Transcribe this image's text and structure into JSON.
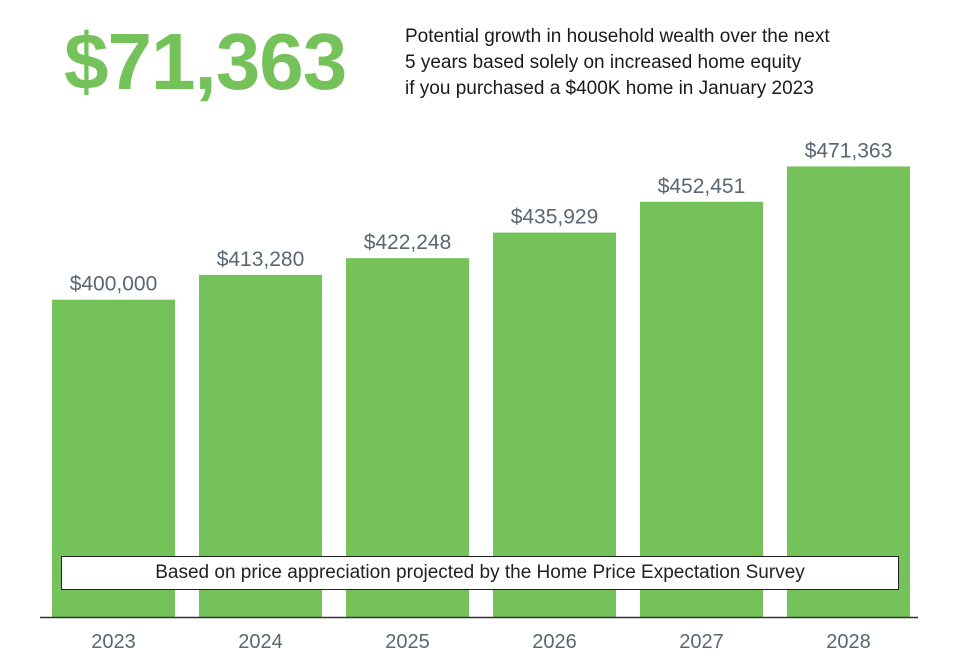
{
  "headline": "$71,363",
  "description_lines": [
    "Potential growth in household wealth over the next",
    "5 years based solely on increased home equity",
    "if you purchased a $400K home in January 2023"
  ],
  "note": "Based on price appreciation projected by the Home Price Expectation Survey",
  "colors": {
    "bar": "#76c25a",
    "headline": "#76c25a",
    "value_label": "#5b6673",
    "tick_label": "#5b6673",
    "axis": "#333333"
  },
  "chart_data": {
    "type": "bar",
    "categories": [
      "2023",
      "2024",
      "2025",
      "2026",
      "2027",
      "2028"
    ],
    "values": [
      400000,
      413280,
      422248,
      435929,
      452451,
      471363
    ],
    "data_labels": [
      "$400,000",
      "$413,280",
      "$422,248",
      "$435,929",
      "$452,451",
      "$471,363"
    ],
    "title": "",
    "xlabel": "",
    "ylabel": "",
    "ylim": [
      230000,
      485000
    ],
    "grid": false,
    "legend": "none"
  }
}
